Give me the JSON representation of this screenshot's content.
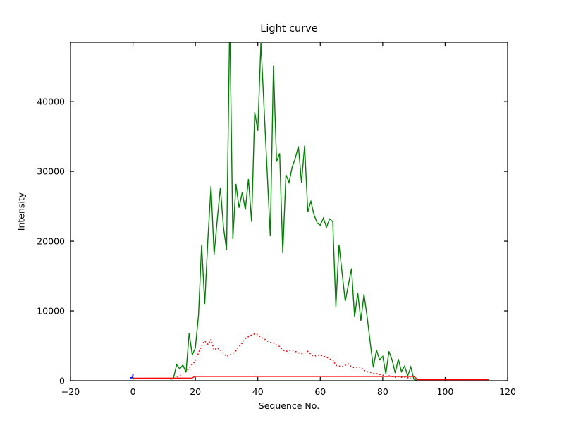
{
  "figure": {
    "title": "Light curve",
    "xlabel": "Sequence No.",
    "ylabel": "Intensity"
  },
  "chart_data": {
    "type": "line",
    "title": "Light curve",
    "xlabel": "Sequence No.",
    "ylabel": "Intensity",
    "xlim": [
      -20,
      120
    ],
    "ylim": [
      0,
      48500
    ],
    "xticks": [
      -20,
      0,
      20,
      40,
      60,
      80,
      100,
      120
    ],
    "xtick_labels": [
      "−20",
      "0",
      "20",
      "40",
      "60",
      "80",
      "100",
      "120"
    ],
    "yticks": [
      0,
      10000,
      20000,
      30000,
      40000
    ],
    "ytick_labels": [
      "0",
      "10000",
      "20000",
      "30000",
      "40000"
    ],
    "grid": false,
    "legend": false,
    "background": "#ffffff",
    "axis_color": "#000000",
    "series": [
      {
        "name": "green-light-curve",
        "color": "#008000",
        "style": "solid",
        "width": 1.4,
        "points": [
          [
            12,
            150
          ],
          [
            13,
            400
          ],
          [
            14,
            2300
          ],
          [
            15,
            1700
          ],
          [
            16,
            2250
          ],
          [
            17,
            1200
          ],
          [
            18,
            6800
          ],
          [
            19,
            3700
          ],
          [
            20,
            4700
          ],
          [
            21,
            9400
          ],
          [
            22,
            19500
          ],
          [
            23,
            11000
          ],
          [
            24,
            20300
          ],
          [
            25,
            27900
          ],
          [
            26,
            18100
          ],
          [
            27,
            23000
          ],
          [
            28,
            27700
          ],
          [
            29,
            22000
          ],
          [
            30,
            18700
          ],
          [
            31,
            52000
          ],
          [
            32,
            20300
          ],
          [
            33,
            28200
          ],
          [
            34,
            24800
          ],
          [
            35,
            27000
          ],
          [
            36,
            24500
          ],
          [
            37,
            28900
          ],
          [
            38,
            22800
          ],
          [
            39,
            38500
          ],
          [
            40,
            35800
          ],
          [
            41,
            48400
          ],
          [
            42,
            39100
          ],
          [
            43,
            29900
          ],
          [
            44,
            20700
          ],
          [
            45,
            45200
          ],
          [
            46,
            31400
          ],
          [
            47,
            32600
          ],
          [
            48,
            18300
          ],
          [
            49,
            29500
          ],
          [
            50,
            28400
          ],
          [
            51,
            30600
          ],
          [
            52,
            31900
          ],
          [
            53,
            33600
          ],
          [
            54,
            28400
          ],
          [
            55,
            33700
          ],
          [
            56,
            24200
          ],
          [
            57,
            25700
          ],
          [
            58,
            23800
          ],
          [
            59,
            22600
          ],
          [
            60,
            22300
          ],
          [
            61,
            23300
          ],
          [
            62,
            22000
          ],
          [
            63,
            23200
          ],
          [
            64,
            22800
          ],
          [
            65,
            10600
          ],
          [
            66,
            19500
          ],
          [
            67,
            15400
          ],
          [
            68,
            11400
          ],
          [
            69,
            13700
          ],
          [
            70,
            16100
          ],
          [
            71,
            9100
          ],
          [
            72,
            12600
          ],
          [
            73,
            8600
          ],
          [
            74,
            12400
          ],
          [
            75,
            9200
          ],
          [
            76,
            5500
          ],
          [
            77,
            1900
          ],
          [
            78,
            4400
          ],
          [
            79,
            3000
          ],
          [
            80,
            3500
          ],
          [
            81,
            1000
          ],
          [
            82,
            4200
          ],
          [
            83,
            3000
          ],
          [
            84,
            1100
          ],
          [
            85,
            3100
          ],
          [
            86,
            1300
          ],
          [
            87,
            2100
          ],
          [
            88,
            700
          ],
          [
            89,
            1950
          ],
          [
            90,
            200
          ],
          [
            91,
            50
          ]
        ]
      },
      {
        "name": "red-dotted-curve",
        "color": "#ff0000",
        "style": "dotted",
        "width": 1.6,
        "points": [
          [
            14,
            600
          ],
          [
            15,
            750
          ],
          [
            16,
            950
          ],
          [
            17,
            1300
          ],
          [
            18,
            1800
          ],
          [
            19,
            2350
          ],
          [
            20,
            2800
          ],
          [
            21,
            4000
          ],
          [
            22,
            5000
          ],
          [
            23,
            5700
          ],
          [
            24,
            5200
          ],
          [
            25,
            5900
          ],
          [
            26,
            4400
          ],
          [
            27,
            4700
          ],
          [
            28,
            4400
          ],
          [
            29,
            3900
          ],
          [
            30,
            3500
          ],
          [
            31,
            3700
          ],
          [
            32,
            3900
          ],
          [
            33,
            4300
          ],
          [
            34,
            4900
          ],
          [
            35,
            5400
          ],
          [
            36,
            6050
          ],
          [
            37,
            6300
          ],
          [
            38,
            6550
          ],
          [
            39,
            6700
          ],
          [
            40,
            6600
          ],
          [
            41,
            6200
          ],
          [
            42,
            6000
          ],
          [
            43,
            5700
          ],
          [
            44,
            5500
          ],
          [
            45,
            5400
          ],
          [
            46,
            5100
          ],
          [
            47,
            4900
          ],
          [
            48,
            4400
          ],
          [
            49,
            4200
          ],
          [
            50,
            4300
          ],
          [
            51,
            4400
          ],
          [
            52,
            4200
          ],
          [
            53,
            4000
          ],
          [
            54,
            3900
          ],
          [
            55,
            3950
          ],
          [
            56,
            4200
          ],
          [
            57,
            3800
          ],
          [
            58,
            3500
          ],
          [
            59,
            3650
          ],
          [
            60,
            3700
          ],
          [
            61,
            3500
          ],
          [
            62,
            3400
          ],
          [
            63,
            3100
          ],
          [
            64,
            3000
          ],
          [
            65,
            2200
          ],
          [
            66,
            2100
          ],
          [
            67,
            2000
          ],
          [
            68,
            2200
          ],
          [
            69,
            2400
          ],
          [
            70,
            2000
          ],
          [
            71,
            1850
          ],
          [
            72,
            2000
          ],
          [
            73,
            1900
          ],
          [
            74,
            1500
          ],
          [
            75,
            1300
          ],
          [
            76,
            1200
          ],
          [
            77,
            1050
          ],
          [
            78,
            1000
          ],
          [
            79,
            900
          ],
          [
            80,
            800
          ],
          [
            81,
            650
          ],
          [
            82,
            700
          ],
          [
            83,
            600
          ],
          [
            84,
            500
          ],
          [
            85,
            600
          ],
          [
            86,
            480
          ],
          [
            87,
            520
          ],
          [
            88,
            420
          ],
          [
            89,
            380
          ]
        ]
      },
      {
        "name": "red-step-line",
        "color": "#ff0000",
        "style": "solid",
        "width": 1.4,
        "points": [
          [
            0,
            350
          ],
          [
            19,
            380
          ],
          [
            19.8,
            620
          ],
          [
            90,
            620
          ],
          [
            91.2,
            150
          ],
          [
            114,
            150
          ]
        ]
      },
      {
        "name": "blue-step-mark",
        "color": "#0000ff",
        "style": "solid",
        "width": 1.8,
        "points": [
          [
            -1,
            400
          ],
          [
            -0.1,
            430
          ],
          [
            0,
            950
          ]
        ]
      }
    ]
  }
}
